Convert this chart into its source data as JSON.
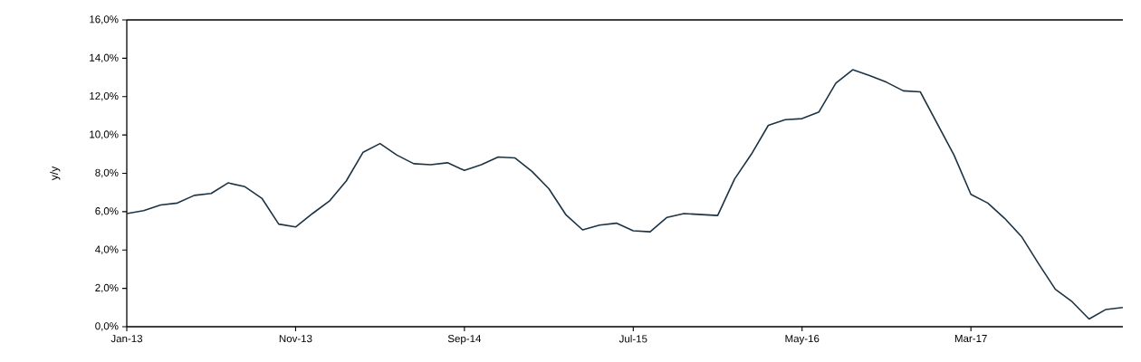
{
  "chart_data": {
    "type": "line",
    "ylabel": "y/y",
    "x": [
      "2013-01",
      "2013-02",
      "2013-03",
      "2013-04",
      "2013-05",
      "2013-06",
      "2013-07",
      "2013-08",
      "2013-09",
      "2013-10",
      "2013-11",
      "2013-12",
      "2014-01",
      "2014-02",
      "2014-03",
      "2014-04",
      "2014-05",
      "2014-06",
      "2014-07",
      "2014-08",
      "2014-09",
      "2014-10",
      "2014-11",
      "2014-12",
      "2015-01",
      "2015-02",
      "2015-03",
      "2015-04",
      "2015-05",
      "2015-06",
      "2015-07",
      "2015-08",
      "2015-09",
      "2015-10",
      "2015-11",
      "2015-12",
      "2016-01",
      "2016-02",
      "2016-03",
      "2016-04",
      "2016-05",
      "2016-06",
      "2016-07",
      "2016-08",
      "2016-09",
      "2016-10",
      "2016-11",
      "2016-12",
      "2017-01",
      "2017-02",
      "2017-03",
      "2017-04",
      "2017-05",
      "2017-06",
      "2017-07",
      "2017-08",
      "2017-09",
      "2017-10",
      "2017-11",
      "2017-12"
    ],
    "series": [
      {
        "color": "#1c3344",
        "values": [
          5.9,
          6.05,
          6.35,
          6.45,
          6.85,
          6.95,
          7.5,
          7.3,
          6.7,
          5.35,
          5.2,
          5.9,
          6.55,
          7.6,
          9.1,
          9.55,
          8.95,
          8.5,
          8.45,
          8.55,
          8.15,
          8.45,
          8.85,
          8.8,
          8.1,
          7.2,
          5.85,
          5.05,
          5.3,
          5.4,
          5.0,
          4.95,
          5.7,
          5.9,
          5.85,
          5.8,
          7.7,
          9.0,
          10.5,
          10.8,
          10.85,
          11.2,
          12.7,
          13.4,
          13.1,
          12.75,
          12.3,
          12.25,
          10.6,
          8.95,
          6.9,
          6.45,
          5.65,
          4.7,
          3.3,
          1.95,
          1.3,
          0.4,
          0.9,
          1.0
        ]
      }
    ],
    "xlim": [
      "2013-01",
      "2017-12"
    ],
    "xticks": [
      {
        "value": "2013-01",
        "label": "Jan-13"
      },
      {
        "value": "2013-11",
        "label": "Nov-13"
      },
      {
        "value": "2014-09",
        "label": "Sep-14"
      },
      {
        "value": "2015-07",
        "label": "Jul-15"
      },
      {
        "value": "2016-05",
        "label": "May-16"
      },
      {
        "value": "2017-03",
        "label": "Mar-17"
      }
    ],
    "ylim": [
      0,
      16
    ],
    "yticks": [
      {
        "value": 0,
        "label": "0,0%"
      },
      {
        "value": 2,
        "label": "2,0%"
      },
      {
        "value": 4,
        "label": "4,0%"
      },
      {
        "value": 6,
        "label": "6,0%"
      },
      {
        "value": 8,
        "label": "8,0%"
      },
      {
        "value": 10,
        "label": "10,0%"
      },
      {
        "value": 12,
        "label": "12,0%"
      },
      {
        "value": 14,
        "label": "14,0%"
      },
      {
        "value": 16,
        "label": "16,0%"
      }
    ],
    "grid": false,
    "marker": "none",
    "line_style": "solid"
  }
}
